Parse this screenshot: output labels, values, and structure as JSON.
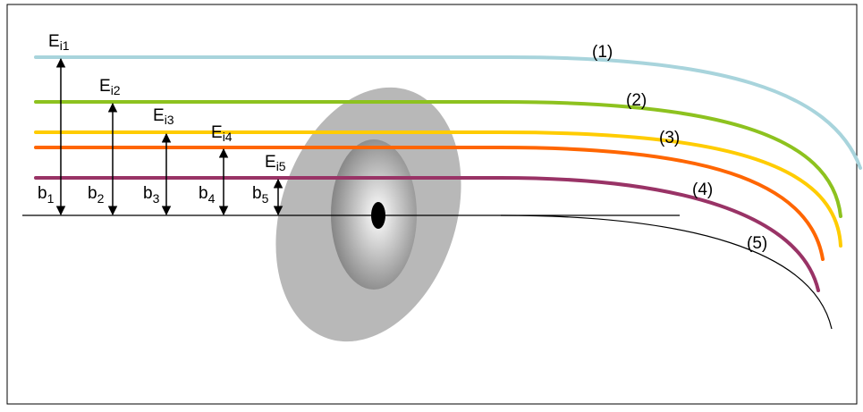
{
  "trajectories": [
    {
      "energy": {
        "main": "E",
        "sub": "i1"
      },
      "impact": {
        "main": "b",
        "sub": "1"
      },
      "label": "(1)"
    },
    {
      "energy": {
        "main": "E",
        "sub": "i2"
      },
      "impact": {
        "main": "b",
        "sub": "2"
      },
      "label": "(2)"
    },
    {
      "energy": {
        "main": "E",
        "sub": "i3"
      },
      "impact": {
        "main": "b",
        "sub": "3"
      },
      "label": "(3)"
    },
    {
      "energy": {
        "main": "E",
        "sub": "i4"
      },
      "impact": {
        "main": "b",
        "sub": "4"
      },
      "label": "(4)"
    },
    {
      "energy": {
        "main": "E",
        "sub": "i5"
      },
      "impact": {
        "main": "b",
        "sub": "5"
      },
      "label": "(5)"
    }
  ]
}
